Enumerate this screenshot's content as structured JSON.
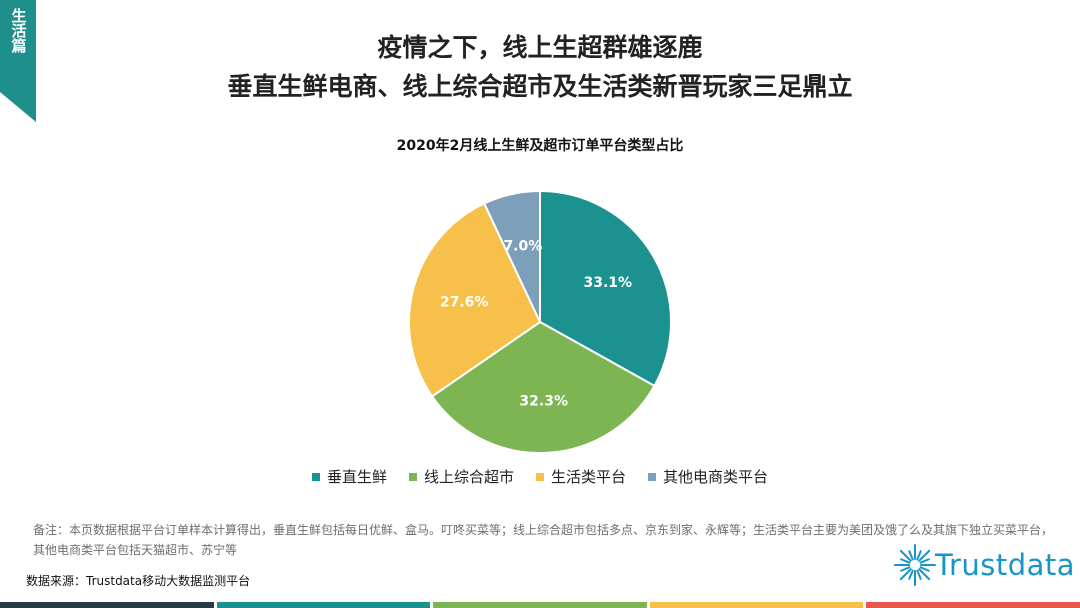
{
  "section_tag": "生活篇",
  "title_line1": "疫情之下，线上生超群雄逐鹿",
  "title_line2": "垂直生鲜电商、线上综合超市及生活类新晋玩家三足鼎立",
  "chart_data": {
    "type": "pie",
    "title": "2020年2月线上生鲜及超市订单平台类型占比",
    "categories": [
      "垂直生鲜",
      "线上综合超市",
      "生活类平台",
      "其他电商类平台"
    ],
    "values": [
      33.1,
      32.3,
      27.6,
      7.0
    ],
    "value_labels": [
      "33.1%",
      "32.3%",
      "27.6%",
      "7.0%"
    ],
    "unit": "%",
    "colors": [
      "#1b9190",
      "#7db552",
      "#f7c04a",
      "#7d9fba"
    ],
    "legend_position": "bottom"
  },
  "note": "备注：本页数据根据平台订单样本计算得出，垂直生鲜包括每日优鲜、盒马。叮咚买菜等；线上综合超市包括多点、京东到家、永辉等；生活类平台主要为美团及饿了么及其旗下独立买菜平台，其他电商类平台包括天猫超市、苏宁等",
  "source": "数据来源：Trustdata移动大数据监测平台",
  "logo_text": "Trustdata",
  "accent_color": "#1f8f8c",
  "bottom_bar_colors": [
    "#2a3a44",
    "#1b9190",
    "#7db552",
    "#f7c04a",
    "#e8574b"
  ]
}
